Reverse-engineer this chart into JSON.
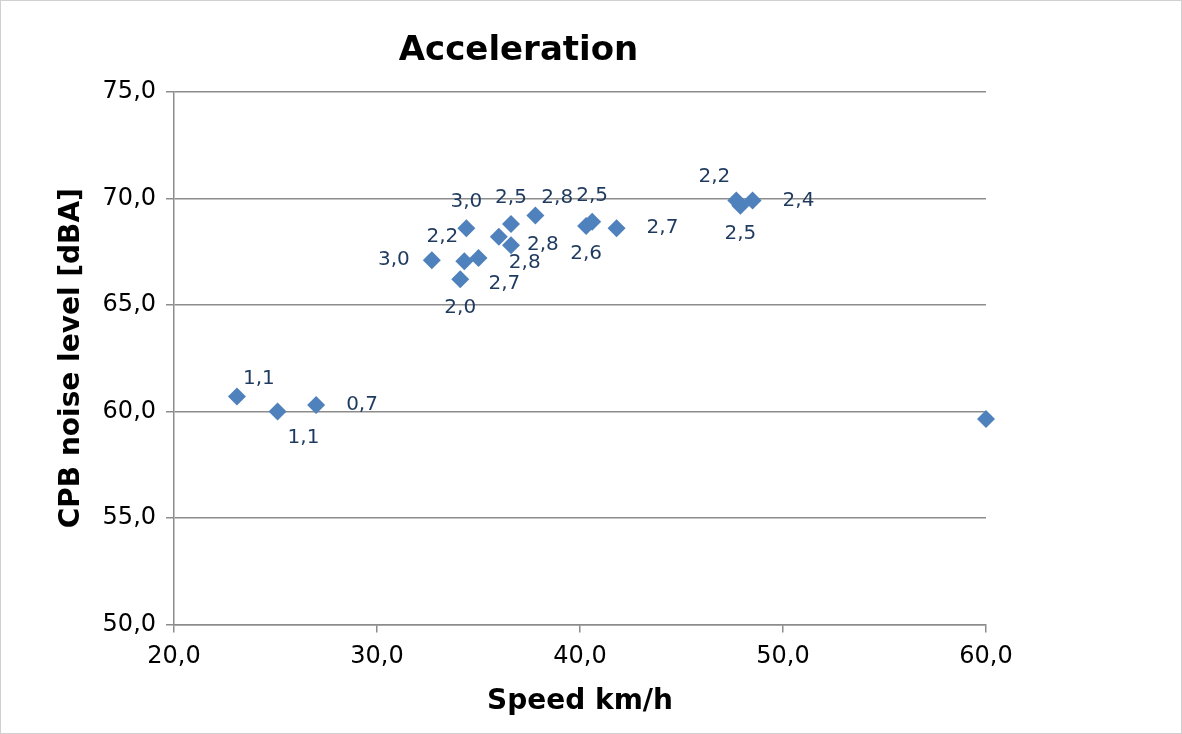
{
  "chart_data": {
    "type": "scatter",
    "title": "Acceleration",
    "xlabel": "Speed km/h",
    "ylabel": "CPB noise level [dBA]",
    "x": [
      23.1,
      25.1,
      27.0,
      32.7,
      34.4,
      34.3,
      34.1,
      35.0,
      36.0,
      36.6,
      36.6,
      37.8,
      40.3,
      40.6,
      41.8,
      47.7,
      47.9,
      48.5,
      60.0
    ],
    "values": [
      60.7,
      60.0,
      60.3,
      67.1,
      68.6,
      67.05,
      66.2,
      67.2,
      68.2,
      68.8,
      67.8,
      69.2,
      68.7,
      68.9,
      68.6,
      69.9,
      69.65,
      69.9,
      59.65
    ],
    "annotations": [
      {
        "text": "1,1",
        "x": 23.1,
        "y": 60.7
      },
      {
        "text": "1,1",
        "x": 25.1,
        "y": 60.0
      },
      {
        "text": "0,7",
        "x": 27.0,
        "y": 60.3
      },
      {
        "text": "3,0",
        "x": 32.7,
        "y": 67.1
      },
      {
        "text": "3,0",
        "x": 34.4,
        "y": 68.6
      },
      {
        "text": "2,2",
        "x": 34.3,
        "y": 67.05
      },
      {
        "text": "2,0",
        "x": 34.1,
        "y": 66.2
      },
      {
        "text": "2,7",
        "x": 35.0,
        "y": 67.2
      },
      {
        "text": "2,8",
        "x": 36.0,
        "y": 68.2
      },
      {
        "text": "2,5",
        "x": 36.6,
        "y": 68.8
      },
      {
        "text": "2,8",
        "x": 36.6,
        "y": 67.8
      },
      {
        "text": "2,8",
        "x": 37.8,
        "y": 69.2
      },
      {
        "text": "2,6",
        "x": 40.3,
        "y": 68.7
      },
      {
        "text": "2,5",
        "x": 40.6,
        "y": 68.9
      },
      {
        "text": "2,7",
        "x": 41.8,
        "y": 68.6
      },
      {
        "text": "2,2",
        "x": 47.7,
        "y": 69.9
      },
      {
        "text": "2,5",
        "x": 47.9,
        "y": 69.65
      },
      {
        "text": "2,4",
        "x": 48.5,
        "y": 69.9
      }
    ],
    "color": "#4f81bd",
    "marker": "diamond",
    "grid": "y",
    "xlim": [
      20,
      60
    ],
    "xticks": [
      {
        "value": 20,
        "label": "20,0"
      },
      {
        "value": 30,
        "label": "30,0"
      },
      {
        "value": 40,
        "label": "40,0"
      },
      {
        "value": 50,
        "label": "50,0"
      },
      {
        "value": 60,
        "label": "60,0"
      }
    ],
    "ylim": [
      50,
      75
    ],
    "yticks": [
      {
        "value": 50,
        "label": "50,0"
      },
      {
        "value": 55,
        "label": "55,0"
      },
      {
        "value": 60,
        "label": "60,0"
      },
      {
        "value": 65,
        "label": "65,0"
      },
      {
        "value": 70,
        "label": "70,0"
      },
      {
        "value": 75,
        "label": "75,0"
      }
    ]
  }
}
